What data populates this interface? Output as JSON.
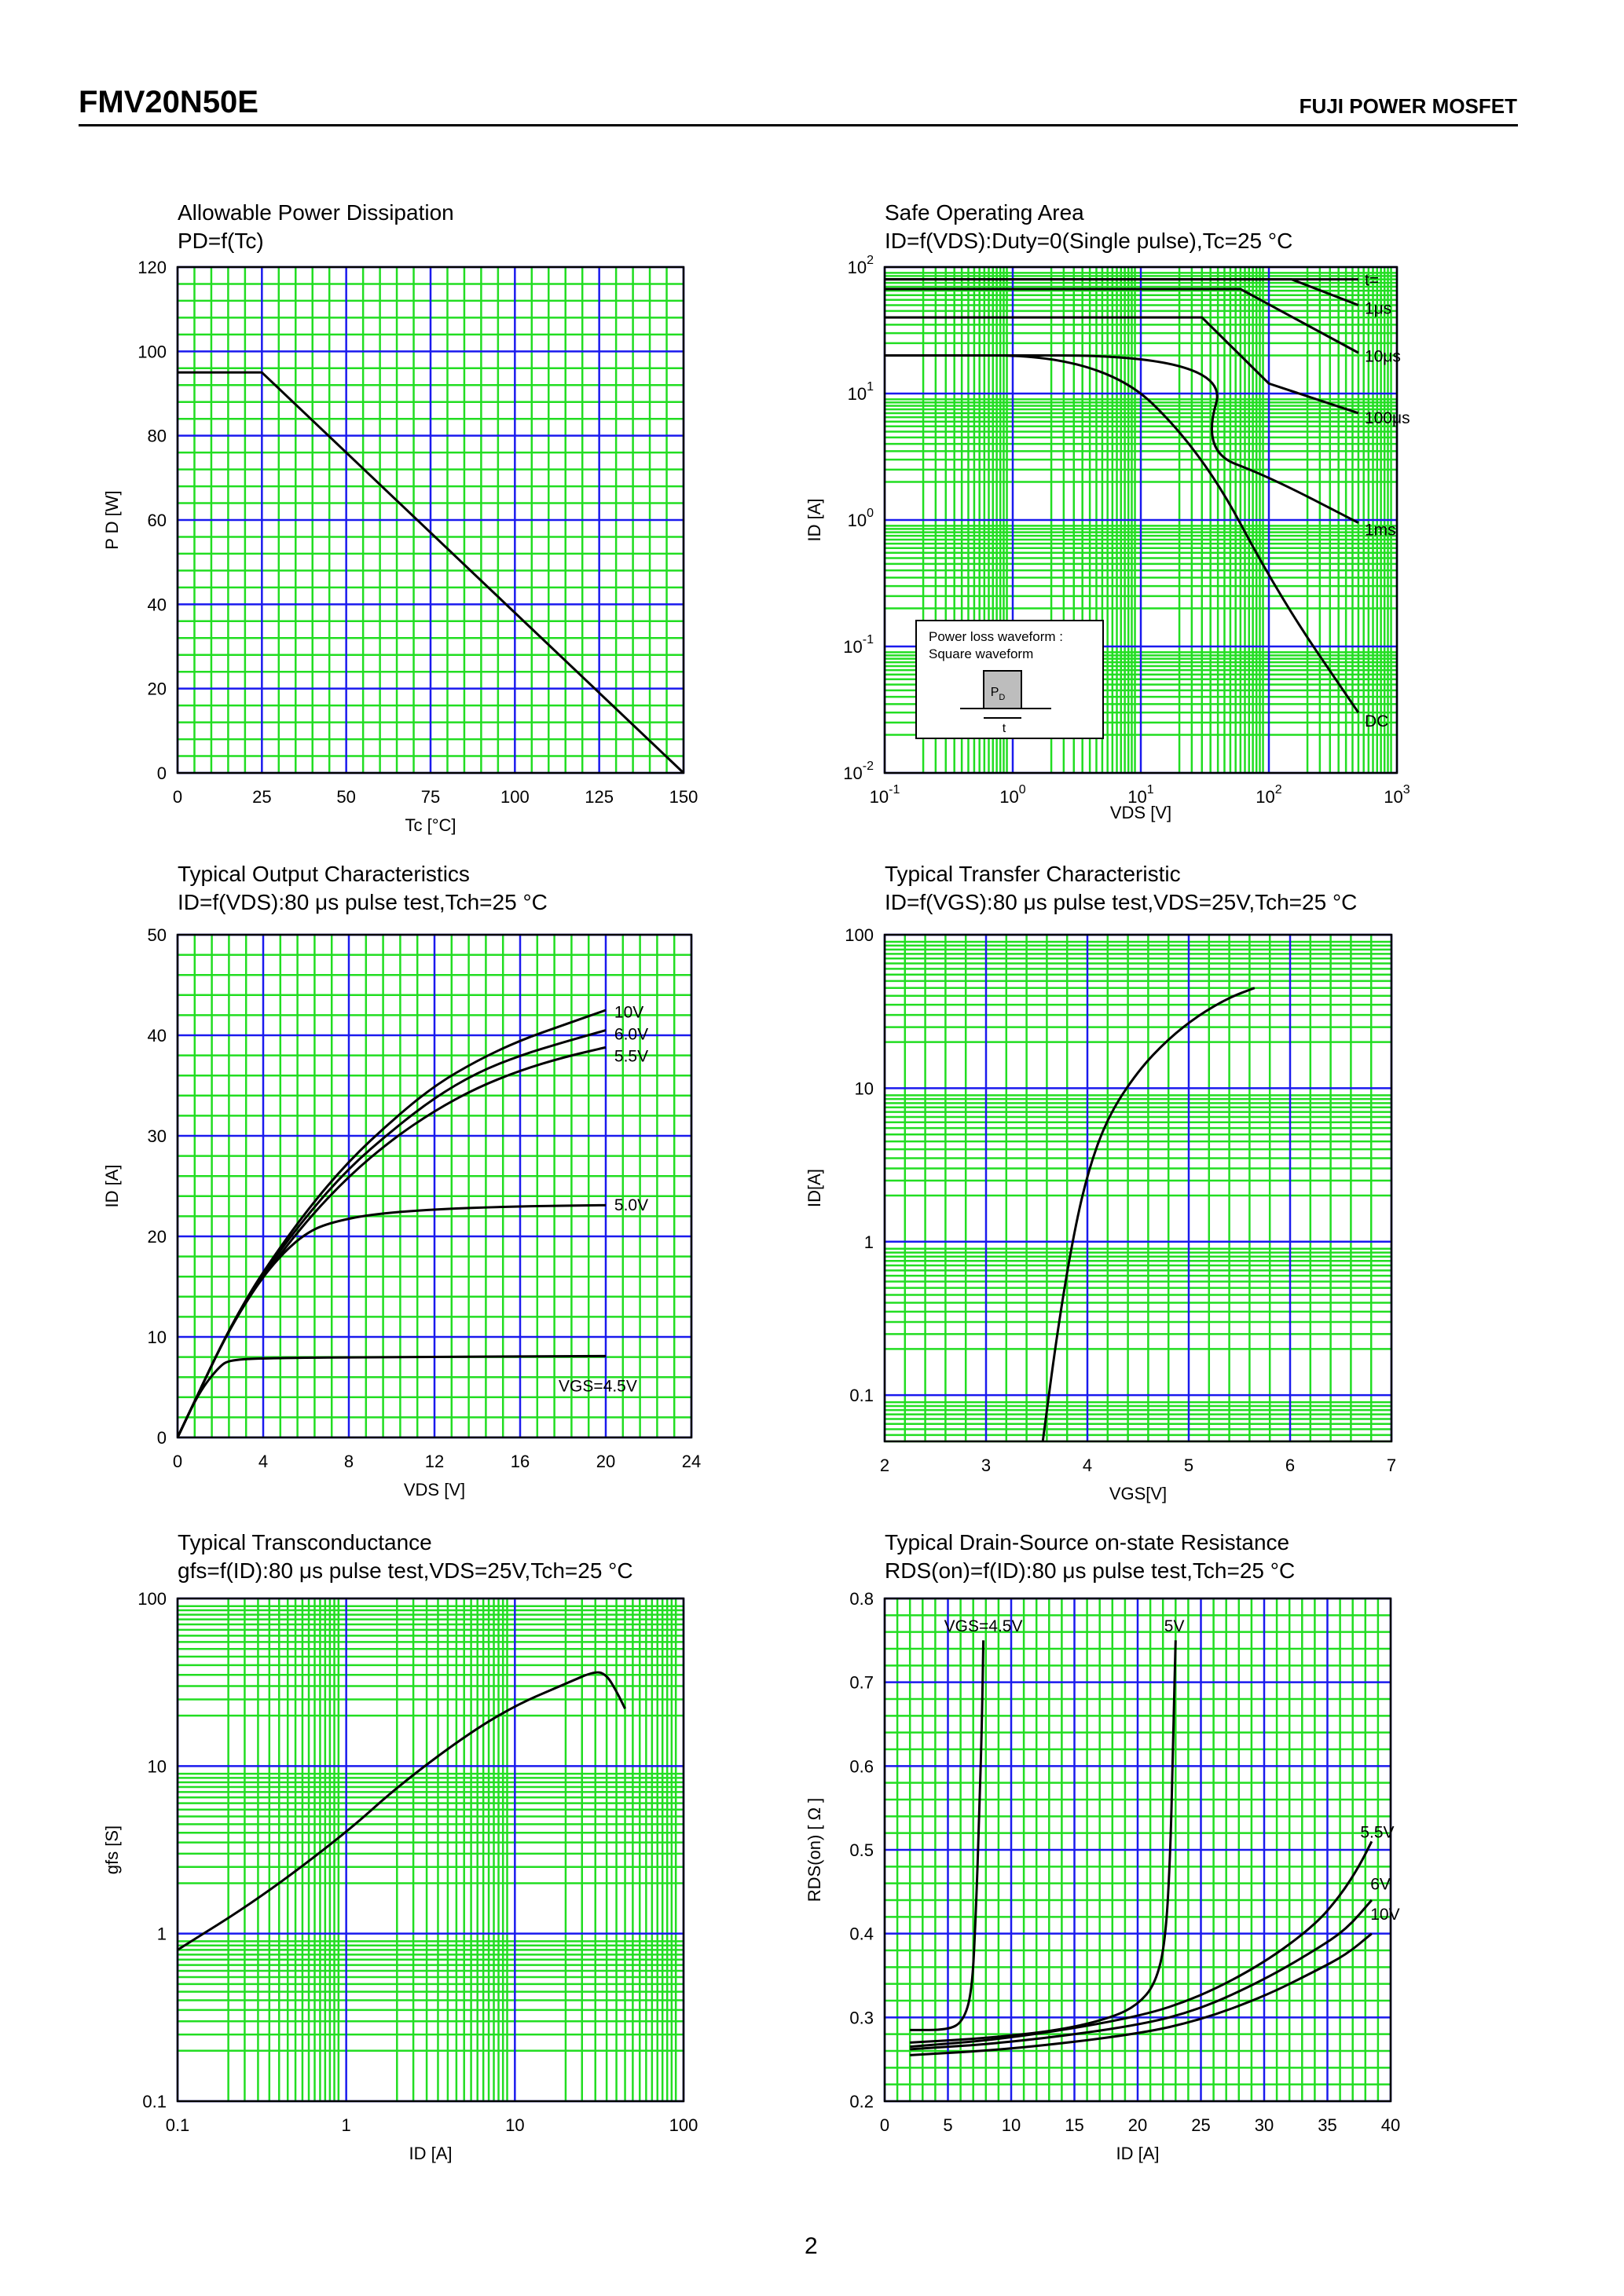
{
  "header": {
    "model": "FMV20N50E",
    "brand": "FUJI POWER MOSFET"
  },
  "page_number": "2",
  "chart_data": [
    {
      "id": "power-dissipation",
      "type": "line",
      "title": "Allowable Power Dissipation",
      "subtitle": "PD=f(Tc)",
      "xlabel": "Tc [°C]",
      "ylabel": "P D [W]",
      "xscale": "linear",
      "yscale": "linear",
      "xlim": [
        0,
        150
      ],
      "ylim": [
        0,
        120
      ],
      "xticks": [
        0,
        25,
        50,
        75,
        100,
        125,
        150
      ],
      "xtick_labels": [
        "0",
        "25",
        "50",
        "75",
        "100",
        "125",
        "150"
      ],
      "yticks": [
        0,
        20,
        40,
        60,
        80,
        100,
        120
      ],
      "ytick_labels": [
        "0",
        "20",
        "40",
        "60",
        "80",
        "100",
        "120"
      ],
      "grid": {
        "major": "blue",
        "minor": "green"
      },
      "series": [
        {
          "points": [
            [
              0,
              95
            ],
            [
              25,
              95
            ],
            [
              150,
              0
            ]
          ]
        }
      ]
    },
    {
      "id": "safe-operating-area",
      "type": "line",
      "title": "Safe Operating Area",
      "subtitle": "ID=f(VDS):Duty=0(Single pulse),Tc=25 °C",
      "xlabel": "VDS [V]",
      "ylabel": "ID [A]",
      "xscale": "log",
      "yscale": "log",
      "xlim": [
        0.1,
        1000
      ],
      "ylim": [
        0.01,
        100
      ],
      "xticks": [
        0.1,
        1,
        10,
        100,
        1000
      ],
      "xtick_labels": [
        [
          "10",
          "-1"
        ],
        [
          "10",
          "0"
        ],
        [
          "10",
          "1"
        ],
        [
          "10",
          "2"
        ],
        [
          "10",
          "3"
        ]
      ],
      "yticks": [
        0.01,
        0.1,
        1,
        10,
        100
      ],
      "ytick_labels": [
        [
          "10",
          "-2"
        ],
        [
          "10",
          "-1"
        ],
        [
          "10",
          "0"
        ],
        [
          "10",
          "1"
        ],
        [
          "10",
          "2"
        ]
      ],
      "grid": {
        "major": "blue",
        "minor": "green"
      },
      "series": [
        {
          "name": "t=",
          "points": [
            [
              0.1,
              80
            ],
            [
              500,
              80
            ]
          ]
        },
        {
          "name": "1μs",
          "points": [
            [
              0.1,
              80
            ],
            [
              150,
              80
            ],
            [
              500,
              50
            ]
          ]
        },
        {
          "name": "10μs",
          "points": [
            [
              0.1,
              67
            ],
            [
              60,
              67
            ],
            [
              500,
              21
            ]
          ]
        },
        {
          "name": "100μs",
          "points": [
            [
              0.1,
              40
            ],
            [
              30,
              40
            ],
            [
              100,
              12
            ],
            [
              500,
              7
            ]
          ]
        },
        {
          "name": "1ms",
          "points": [
            [
              0.1,
              20
            ],
            [
              50,
              20
            ],
            [
              30,
              3.5
            ],
            [
              100,
              2.2
            ],
            [
              500,
              0.95
            ]
          ]
        },
        {
          "name": "DC",
          "points": [
            [
              0.1,
              20
            ],
            [
              5,
              20
            ],
            [
              30,
              3.5
            ],
            [
              120,
              0.25
            ],
            [
              500,
              0.03
            ]
          ]
        }
      ],
      "inset": {
        "line1": "Power loss waveform :",
        "line2": "Square waveform",
        "pd": "P",
        "pd_sub": "D",
        "t": "t"
      }
    },
    {
      "id": "output-characteristics",
      "type": "line",
      "title": "Typical Output Characteristics",
      "subtitle": "ID=f(VDS):80 μs pulse test,Tch=25 °C",
      "xlabel": "VDS [V]",
      "ylabel": "ID [A]",
      "xscale": "linear",
      "yscale": "linear",
      "xlim": [
        0,
        24
      ],
      "ylim": [
        0,
        50
      ],
      "xticks": [
        0,
        4,
        8,
        12,
        16,
        20,
        24
      ],
      "xtick_labels": [
        "0",
        "4",
        "8",
        "12",
        "16",
        "20",
        "24"
      ],
      "yticks": [
        0,
        10,
        20,
        30,
        40,
        50
      ],
      "ytick_labels": [
        "0",
        "10",
        "20",
        "30",
        "40",
        "50"
      ],
      "grid": {
        "major": "blue",
        "minor": "green"
      },
      "series": [
        {
          "name": "10V",
          "points": [
            [
              0,
              0
            ],
            [
              1,
              4.5
            ],
            [
              2,
              9
            ],
            [
              3,
              13
            ],
            [
              4,
              16.5
            ],
            [
              6,
              22.5
            ],
            [
              8,
              27.5
            ],
            [
              10,
              31.5
            ],
            [
              12,
              35
            ],
            [
              14,
              37.5
            ],
            [
              16,
              39.5
            ],
            [
              18,
              41
            ],
            [
              20,
              42.5
            ]
          ]
        },
        {
          "name": "6.0V",
          "points": [
            [
              0,
              0
            ],
            [
              1,
              4.5
            ],
            [
              2,
              9
            ],
            [
              3,
              13
            ],
            [
              4,
              16.3
            ],
            [
              6,
              22
            ],
            [
              8,
              26.8
            ],
            [
              10,
              30.5
            ],
            [
              12,
              33.8
            ],
            [
              14,
              36.3
            ],
            [
              16,
              38
            ],
            [
              18,
              39.3
            ],
            [
              20,
              40.5
            ]
          ]
        },
        {
          "name": "5.5V",
          "points": [
            [
              0,
              0
            ],
            [
              1,
              4.5
            ],
            [
              2,
              9
            ],
            [
              3,
              12.8
            ],
            [
              4,
              16
            ],
            [
              6,
              21.5
            ],
            [
              8,
              26
            ],
            [
              10,
              29.6
            ],
            [
              12,
              32.5
            ],
            [
              14,
              34.8
            ],
            [
              16,
              36.5
            ],
            [
              18,
              37.8
            ],
            [
              20,
              38.8
            ]
          ]
        },
        {
          "name": "5.0V",
          "points": [
            [
              0,
              0
            ],
            [
              1,
              4.5
            ],
            [
              2,
              9
            ],
            [
              3,
              13
            ],
            [
              4,
              16
            ],
            [
              5,
              18.5
            ],
            [
              6,
              20.3
            ],
            [
              7,
              21.3
            ],
            [
              9,
              22.2
            ],
            [
              12,
              22.7
            ],
            [
              16,
              23
            ],
            [
              20,
              23.1
            ]
          ]
        },
        {
          "name": "VGS=4.5V",
          "points": [
            [
              0,
              0
            ],
            [
              1,
              4.5
            ],
            [
              2,
              7.2
            ],
            [
              2.5,
              7.7
            ],
            [
              4,
              7.9
            ],
            [
              10,
              8
            ],
            [
              20,
              8.1
            ]
          ]
        }
      ]
    },
    {
      "id": "transfer-characteristic",
      "type": "line",
      "title": "Typical Transfer Characteristic",
      "subtitle": "ID=f(VGS):80 μs pulse test,VDS=25V,Tch=25 °C",
      "xlabel": "VGS[V]",
      "ylabel": "ID[A]",
      "xscale": "linear",
      "yscale": "log",
      "xlim": [
        2,
        7
      ],
      "ylim": [
        0.05,
        100
      ],
      "xticks": [
        2,
        3,
        4,
        5,
        6,
        7
      ],
      "xtick_labels": [
        "2",
        "3",
        "4",
        "5",
        "6",
        "7"
      ],
      "yticks": [
        0.1,
        1,
        10,
        100
      ],
      "ytick_labels": [
        "0.1",
        "1",
        "10",
        "100"
      ],
      "grid": {
        "major": "blue",
        "minor": "green"
      },
      "series": [
        {
          "points": [
            [
              3.56,
              0.05
            ],
            [
              3.7,
              0.25
            ],
            [
              3.85,
              1
            ],
            [
              4.0,
              2.8
            ],
            [
              4.2,
              6.5
            ],
            [
              4.5,
              13
            ],
            [
              4.8,
              21
            ],
            [
              5.1,
              30
            ],
            [
              5.4,
              39
            ],
            [
              5.65,
              45
            ]
          ]
        }
      ]
    },
    {
      "id": "transconductance",
      "type": "line",
      "title": "Typical Transconductance",
      "subtitle": "gfs=f(ID):80 μs pulse test,VDS=25V,Tch=25 °C",
      "xlabel": "ID [A]",
      "ylabel": "gfs [S]",
      "xscale": "log",
      "yscale": "log",
      "xlim": [
        0.1,
        100
      ],
      "ylim": [
        0.1,
        100
      ],
      "xticks": [
        0.1,
        1,
        10,
        100
      ],
      "xtick_labels": [
        "0.1",
        "1",
        "10",
        "100"
      ],
      "yticks": [
        0.1,
        1,
        10,
        100
      ],
      "ytick_labels": [
        "0.1",
        "1",
        "10",
        "100"
      ],
      "grid": {
        "major": "blue",
        "minor": "green"
      },
      "series": [
        {
          "points": [
            [
              0.1,
              0.8
            ],
            [
              0.3,
              1.6
            ],
            [
              1,
              4
            ],
            [
              2,
              7.5
            ],
            [
              5,
              15
            ],
            [
              10,
              23
            ],
            [
              20,
              31
            ],
            [
              30,
              37
            ],
            [
              35,
              35
            ],
            [
              40,
              28
            ],
            [
              45,
              22
            ]
          ]
        }
      ]
    },
    {
      "id": "drain-source-resistance",
      "type": "line",
      "title": "Typical Drain-Source on-state Resistance",
      "subtitle": "RDS(on)=f(ID):80 μs pulse test,Tch=25 °C",
      "xlabel": "ID [A]",
      "ylabel": "RDS(on) [ Ω ]",
      "xscale": "linear",
      "yscale": "linear",
      "xlim": [
        0,
        40
      ],
      "ylim": [
        0.2,
        0.8
      ],
      "xticks": [
        0,
        5,
        10,
        15,
        20,
        25,
        30,
        35,
        40
      ],
      "xtick_labels": [
        "0",
        "5",
        "10",
        "15",
        "20",
        "25",
        "30",
        "35",
        "40"
      ],
      "yticks": [
        0.2,
        0.3,
        0.4,
        0.5,
        0.6,
        0.7,
        0.8
      ],
      "ytick_labels": [
        "0.2",
        "0.3",
        "0.4",
        "0.5",
        "0.6",
        "0.7",
        "0.8"
      ],
      "grid": {
        "major": "blue",
        "minor": "green"
      },
      "series": [
        {
          "name": "VGS=4.5V",
          "points": [
            [
              2,
              0.285
            ],
            [
              5,
              0.285
            ],
            [
              6.2,
              0.295
            ],
            [
              6.9,
              0.33
            ],
            [
              7.2,
              0.42
            ],
            [
              7.5,
              0.55
            ],
            [
              7.7,
              0.66
            ],
            [
              7.8,
              0.75
            ]
          ]
        },
        {
          "name": "5V",
          "points": [
            [
              2,
              0.27
            ],
            [
              8,
              0.275
            ],
            [
              14,
              0.285
            ],
            [
              18,
              0.3
            ],
            [
              20,
              0.315
            ],
            [
              21.4,
              0.34
            ],
            [
              22.2,
              0.39
            ],
            [
              22.6,
              0.5
            ],
            [
              22.8,
              0.63
            ],
            [
              23.0,
              0.75
            ]
          ]
        },
        {
          "name": "5.5V",
          "points": [
            [
              2,
              0.265
            ],
            [
              10,
              0.275
            ],
            [
              20,
              0.3
            ],
            [
              25,
              0.325
            ],
            [
              30,
              0.365
            ],
            [
              34,
              0.41
            ],
            [
              36,
              0.445
            ],
            [
              37.5,
              0.48
            ],
            [
              38.5,
              0.51
            ]
          ]
        },
        {
          "name": "6V",
          "points": [
            [
              2,
              0.262
            ],
            [
              10,
              0.27
            ],
            [
              20,
              0.29
            ],
            [
              25,
              0.31
            ],
            [
              30,
              0.345
            ],
            [
              34,
              0.38
            ],
            [
              36.5,
              0.405
            ],
            [
              38.5,
              0.44
            ]
          ]
        },
        {
          "name": "10V",
          "points": [
            [
              2,
              0.255
            ],
            [
              10,
              0.262
            ],
            [
              20,
              0.28
            ],
            [
              25,
              0.297
            ],
            [
              30,
              0.325
            ],
            [
              34,
              0.355
            ],
            [
              36.5,
              0.375
            ],
            [
              38.5,
              0.4
            ]
          ]
        }
      ]
    }
  ],
  "colors": {
    "minor_grid": "#22dd22",
    "major_grid": "#1a1aee",
    "curve": "#000000"
  }
}
